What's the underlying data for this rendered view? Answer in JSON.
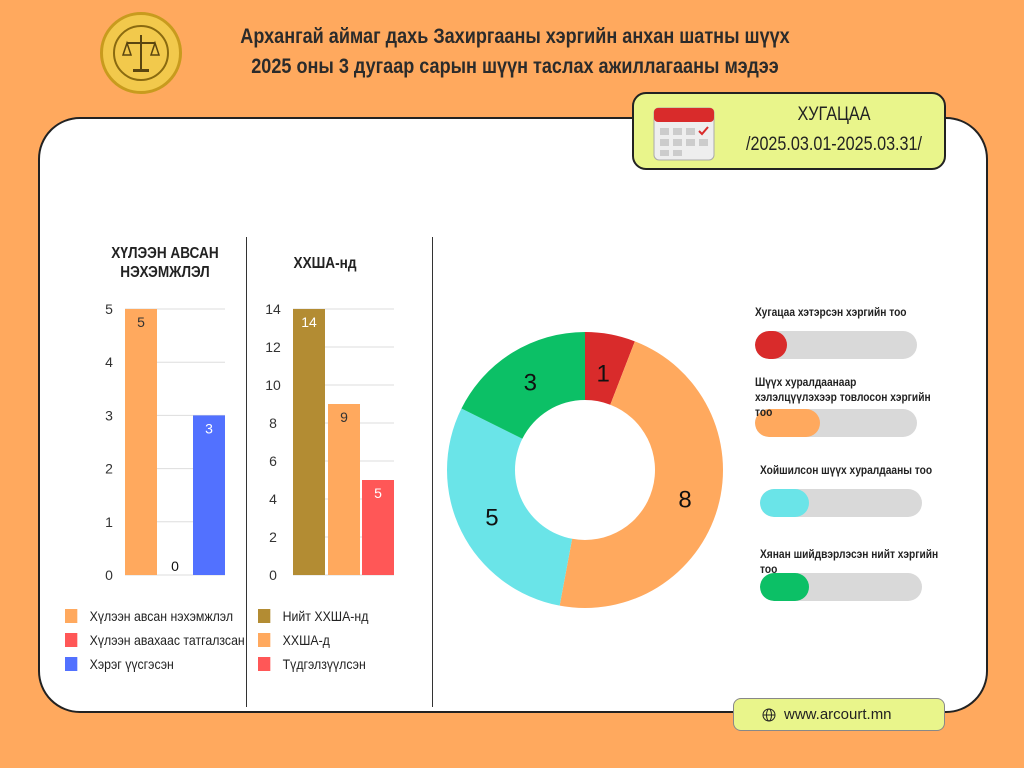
{
  "header": {
    "title_line1": "Архангай аймаг дахь Захиргааны хэргийн анхан шатны шүүх",
    "title_line2": "2025 оны 3 дугаар сарын шүүн таслах ажиллагааны мэдээ"
  },
  "period": {
    "label": "ХУГАЦАА",
    "range": "/2025.03.01-2025.03.31/",
    "icon": "calendar-icon"
  },
  "website": {
    "icon": "globe-icon",
    "text": "www.arcourt.mn"
  },
  "colors": {
    "background": "#FFA95E",
    "accent": "#E9F58B"
  },
  "chart_data": [
    {
      "type": "bar",
      "title": "ХҮЛЭЭН АВСАН НЭХЭМЖЛЭЛ",
      "ylim": [
        0,
        5
      ],
      "yticks": [
        0,
        1,
        2,
        3,
        4,
        5
      ],
      "grid": true,
      "legend": "bottom",
      "series": [
        {
          "name": "Хүлээн авсан нэхэмжлэл",
          "value": 5,
          "color": "#FFA95E"
        },
        {
          "name": "Хүлээн авахаас татгалзсан",
          "value": 0,
          "color": "#FF5757"
        },
        {
          "name": "Хэрэг үүсгэсэн",
          "value": 3,
          "color": "#5271FF"
        }
      ]
    },
    {
      "type": "bar",
      "title": "ХХША-нд",
      "ylim": [
        0,
        14
      ],
      "yticks": [
        0,
        2,
        4,
        6,
        8,
        10,
        12,
        14
      ],
      "grid": true,
      "legend": "bottom",
      "series": [
        {
          "name": "Нийт ХХША-нд",
          "value": 14,
          "color": "#B38C33"
        },
        {
          "name": "ХХША-д",
          "value": 9,
          "color": "#FFA95E"
        },
        {
          "name": "Түдгэлзүүлсэн",
          "value": 5,
          "color": "#FF5757"
        }
      ]
    },
    {
      "type": "pie",
      "donut": true,
      "slices": [
        {
          "value": 1,
          "color": "#D92B2B"
        },
        {
          "value": 8,
          "color": "#FFA95E"
        },
        {
          "value": 5,
          "color": "#6AE4E8"
        },
        {
          "value": 3,
          "color": "#0CC066"
        }
      ]
    }
  ],
  "progress": [
    {
      "label": "Хугацаа хэтэрсэн хэргийн тоо",
      "fraction": 0.2,
      "color": "#D92B2B"
    },
    {
      "label": "Шүүх хуралдаанаар хэлэлцүүлэхээр товлосон хэргийн тоо",
      "fraction": 0.4,
      "color": "#FFA95E"
    },
    {
      "label": "Хойшилсон шүүх хуралдааны тоо",
      "fraction": 0.3,
      "color": "#6AE4E8"
    },
    {
      "label": "Хянан шийдвэрлэсэн нийт хэргийн тоо",
      "fraction": 0.3,
      "color": "#0CC066"
    }
  ]
}
